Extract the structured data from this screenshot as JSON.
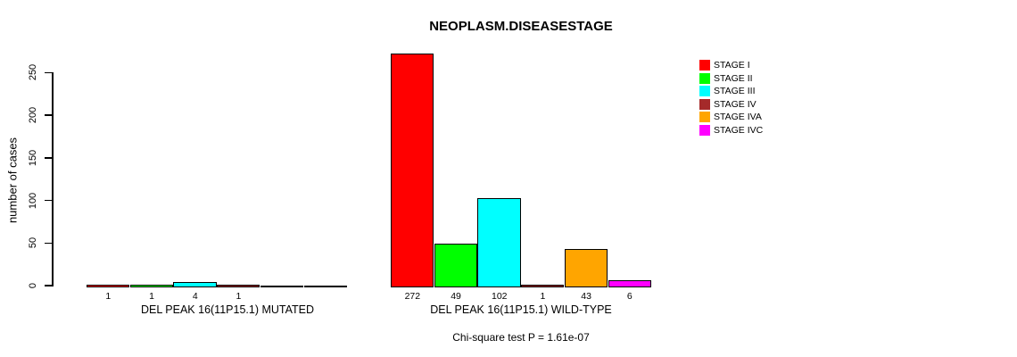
{
  "chart_data": {
    "type": "bar",
    "title": "NEOPLASM.DISEASESTAGE",
    "subtitle": "Chi-square test P = 1.61e-07",
    "ylabel": "number of cases",
    "xlabel": "",
    "yticks": [
      0,
      50,
      100,
      150,
      200,
      250
    ],
    "ylim": [
      0,
      280
    ],
    "grid": false,
    "legend_position": "right",
    "categories": [
      "DEL PEAK 16(11P15.1) MUTATED",
      "DEL PEAK 16(11P15.1) WILD-TYPE"
    ],
    "series": [
      {
        "name": "STAGE I",
        "color": "#FF0000",
        "values": [
          1,
          272
        ]
      },
      {
        "name": "STAGE II",
        "color": "#00FF00",
        "values": [
          1,
          49
        ]
      },
      {
        "name": "STAGE III",
        "color": "#00FFFF",
        "values": [
          4,
          102
        ]
      },
      {
        "name": "STAGE IV",
        "color": "#A52A2A",
        "values": [
          1,
          1
        ]
      },
      {
        "name": "STAGE IVA",
        "color": "#FFA500",
        "values": [
          0,
          43
        ]
      },
      {
        "name": "STAGE IVC",
        "color": "#FF00FF",
        "values": [
          0,
          6
        ]
      }
    ],
    "bar_value_labels": [
      [
        "1",
        "1",
        "4",
        "1",
        "",
        ""
      ],
      [
        "272",
        "49",
        "102",
        "1",
        "43",
        "6"
      ]
    ]
  }
}
